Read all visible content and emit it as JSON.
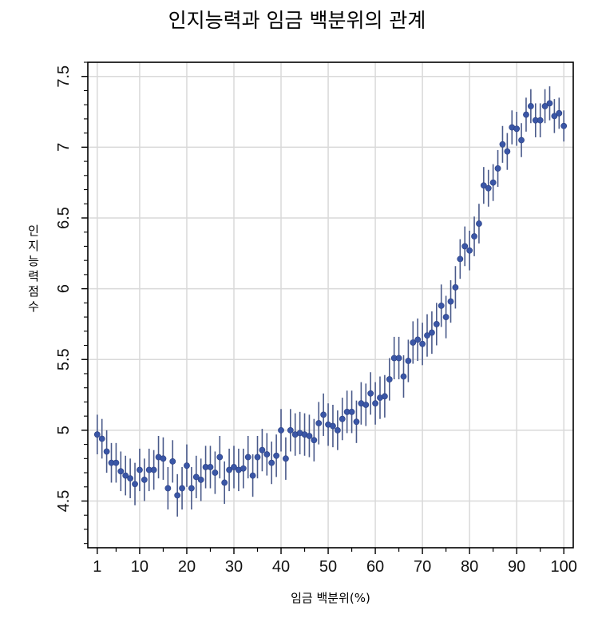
{
  "chart_data": {
    "type": "scatter",
    "title": "인지능력과 임금 백분위의 관계",
    "xlabel": "임금 백분위(%)",
    "ylabel": "인지능력점수",
    "xlim": [
      -1,
      102
    ],
    "ylim": [
      4.17,
      7.6
    ],
    "xticks": [
      1,
      10,
      20,
      30,
      40,
      50,
      60,
      70,
      80,
      90,
      100
    ],
    "xtick_labels": [
      "1",
      "10",
      "20",
      "30",
      "40",
      "50",
      "60",
      "70",
      "80",
      "90",
      "100"
    ],
    "yticks": [
      4.5,
      5,
      5.5,
      6,
      6.5,
      7,
      7.5
    ],
    "ytick_labels": [
      "4.5",
      "5",
      "5.5",
      "6",
      "6.5",
      "7",
      "7.5"
    ],
    "grid": true,
    "marker_color": "#3a56a6",
    "errorbar_color": "#4a5a8a",
    "x": [
      1,
      2,
      3,
      4,
      5,
      6,
      7,
      8,
      9,
      10,
      11,
      12,
      13,
      14,
      15,
      16,
      17,
      18,
      19,
      20,
      21,
      22,
      23,
      24,
      25,
      26,
      27,
      28,
      29,
      30,
      31,
      32,
      33,
      34,
      35,
      36,
      37,
      38,
      39,
      40,
      41,
      42,
      43,
      44,
      45,
      46,
      47,
      48,
      49,
      50,
      51,
      52,
      53,
      54,
      55,
      56,
      57,
      58,
      59,
      60,
      61,
      62,
      63,
      64,
      65,
      66,
      67,
      68,
      69,
      70,
      71,
      72,
      73,
      74,
      75,
      76,
      77,
      78,
      79,
      80,
      81,
      82,
      83,
      84,
      85,
      86,
      87,
      88,
      89,
      90,
      91,
      92,
      93,
      94,
      95,
      96,
      97,
      98,
      99,
      100
    ],
    "y": [
      4.97,
      4.94,
      4.85,
      4.77,
      4.77,
      4.71,
      4.68,
      4.66,
      4.62,
      4.72,
      4.65,
      4.72,
      4.72,
      4.81,
      4.8,
      4.59,
      4.78,
      4.54,
      4.59,
      4.75,
      4.59,
      4.67,
      4.65,
      4.74,
      4.74,
      4.7,
      4.81,
      4.63,
      4.72,
      4.74,
      4.72,
      4.73,
      4.81,
      4.68,
      4.81,
      4.86,
      4.83,
      4.77,
      4.82,
      5.0,
      4.8,
      5.0,
      4.97,
      4.98,
      4.97,
      4.96,
      4.93,
      5.05,
      5.11,
      5.04,
      5.03,
      5.0,
      5.08,
      5.13,
      5.13,
      5.06,
      5.19,
      5.18,
      5.26,
      5.19,
      5.23,
      5.24,
      5.36,
      5.51,
      5.51,
      5.38,
      5.49,
      5.62,
      5.64,
      5.61,
      5.67,
      5.69,
      5.75,
      5.88,
      5.8,
      5.91,
      6.01,
      6.21,
      6.3,
      6.27,
      6.37,
      6.46,
      6.73,
      6.71,
      6.75,
      6.85,
      7.02,
      6.97,
      7.14,
      7.13,
      7.05,
      7.23,
      7.29,
      7.19,
      7.19,
      7.29,
      7.31,
      7.22,
      7.24,
      7.15
    ],
    "error": [
      0.14,
      0.14,
      0.15,
      0.14,
      0.14,
      0.14,
      0.14,
      0.14,
      0.15,
      0.15,
      0.15,
      0.15,
      0.14,
      0.15,
      0.15,
      0.15,
      0.15,
      0.15,
      0.15,
      0.15,
      0.15,
      0.15,
      0.15,
      0.15,
      0.15,
      0.15,
      0.15,
      0.15,
      0.15,
      0.15,
      0.15,
      0.14,
      0.15,
      0.15,
      0.15,
      0.15,
      0.15,
      0.15,
      0.15,
      0.15,
      0.15,
      0.15,
      0.15,
      0.15,
      0.15,
      0.15,
      0.15,
      0.15,
      0.15,
      0.15,
      0.15,
      0.14,
      0.15,
      0.15,
      0.15,
      0.15,
      0.15,
      0.15,
      0.15,
      0.15,
      0.15,
      0.15,
      0.15,
      0.15,
      0.15,
      0.15,
      0.15,
      0.15,
      0.15,
      0.15,
      0.15,
      0.15,
      0.15,
      0.15,
      0.15,
      0.15,
      0.15,
      0.14,
      0.14,
      0.14,
      0.14,
      0.14,
      0.13,
      0.13,
      0.13,
      0.13,
      0.13,
      0.13,
      0.12,
      0.12,
      0.12,
      0.12,
      0.12,
      0.12,
      0.12,
      0.12,
      0.12,
      0.12,
      0.11,
      0.11
    ]
  }
}
